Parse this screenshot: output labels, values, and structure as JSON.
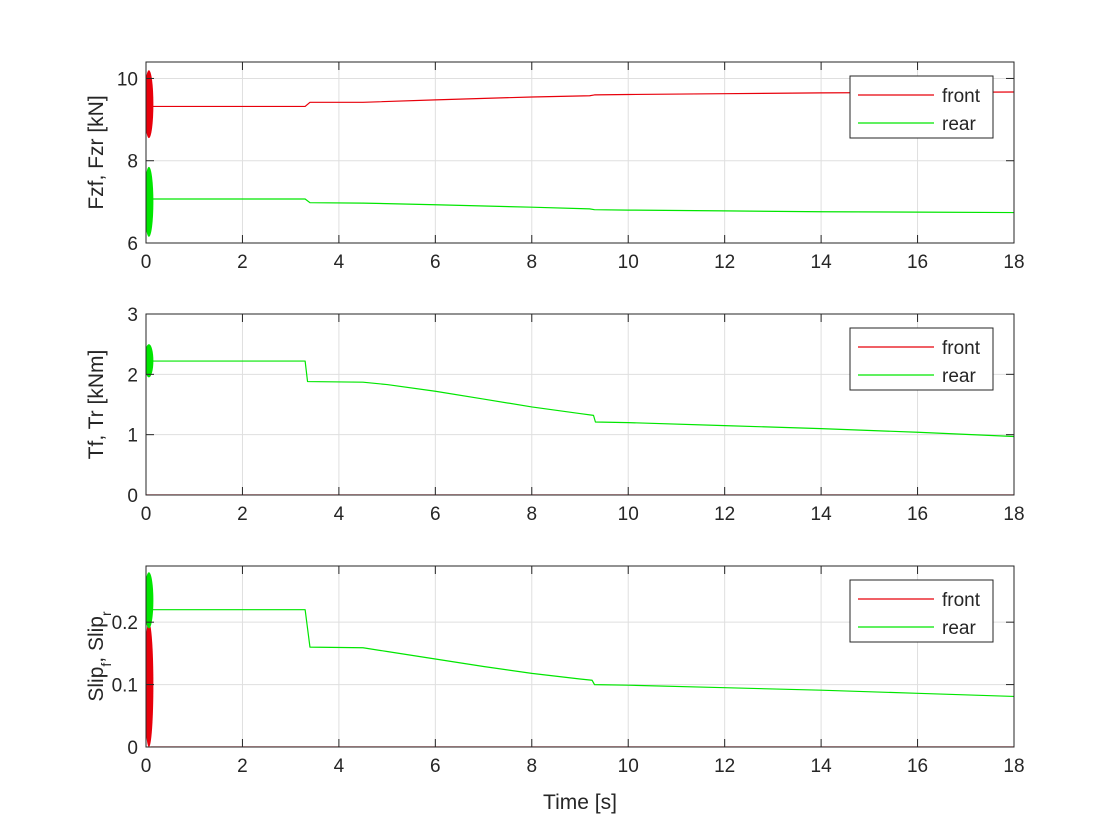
{
  "figure": {
    "xlabel": "Time [s]"
  },
  "chart_data": [
    {
      "type": "line",
      "ylabel": "Fzf, Fzr [kN]",
      "xlim": [
        0,
        18
      ],
      "ylim": [
        6,
        10.4
      ],
      "xticks": [
        0,
        2,
        4,
        6,
        8,
        10,
        12,
        14,
        16,
        18
      ],
      "yticks": [
        6,
        8,
        10
      ],
      "grid": true,
      "legend": "top-right",
      "series": [
        {
          "name": "front",
          "color": "#e8000b",
          "x": [
            0.03,
            3.3,
            3.4,
            4.5,
            6,
            8,
            9.2,
            9.3,
            10,
            12,
            14,
            16,
            18
          ],
          "y": [
            9.32,
            9.32,
            9.42,
            9.42,
            9.48,
            9.55,
            9.58,
            9.6,
            9.61,
            9.63,
            9.65,
            9.66,
            9.67
          ],
          "transient": {
            "x": 0.06,
            "ymin": 8.55,
            "ymax": 10.2
          }
        },
        {
          "name": "rear",
          "color": "#00e600",
          "x": [
            0.03,
            3.3,
            3.4,
            4.5,
            6,
            8,
            9.2,
            9.3,
            10,
            12,
            14,
            16,
            18
          ],
          "y": [
            7.07,
            7.07,
            6.98,
            6.97,
            6.93,
            6.87,
            6.83,
            6.81,
            6.8,
            6.78,
            6.76,
            6.75,
            6.74
          ],
          "transient": {
            "x": 0.06,
            "ymin": 6.15,
            "ymax": 7.85
          }
        }
      ]
    },
    {
      "type": "line",
      "ylabel": "Tf, Tr [kNm]",
      "xlim": [
        0,
        18
      ],
      "ylim": [
        0,
        3
      ],
      "xticks": [
        0,
        2,
        4,
        6,
        8,
        10,
        12,
        14,
        16,
        18
      ],
      "yticks": [
        0,
        1,
        2,
        3
      ],
      "grid": true,
      "legend": "top-right",
      "series": [
        {
          "name": "front",
          "color": "#e8000b",
          "x": [
            0,
            18
          ],
          "y": [
            0,
            0
          ]
        },
        {
          "name": "rear",
          "color": "#00e600",
          "x": [
            0.03,
            3.3,
            3.35,
            4.5,
            5,
            6,
            7,
            8,
            9,
            9.28,
            9.32,
            10,
            12,
            14,
            16,
            18
          ],
          "y": [
            2.22,
            2.22,
            1.88,
            1.87,
            1.83,
            1.72,
            1.59,
            1.46,
            1.35,
            1.32,
            1.21,
            1.2,
            1.15,
            1.1,
            1.04,
            0.97
          ],
          "transient": {
            "x": 0.06,
            "ymin": 1.95,
            "ymax": 2.5
          }
        }
      ]
    },
    {
      "type": "line",
      "ylabel": "Slip",
      "ylabel_sub_f": "f",
      "ylabel_sep": ", Slip",
      "ylabel_sub_r": "r",
      "xlim": [
        0,
        18
      ],
      "ylim": [
        0,
        0.29
      ],
      "xticks": [
        0,
        2,
        4,
        6,
        8,
        10,
        12,
        14,
        16,
        18
      ],
      "yticks": [
        0,
        0.1,
        0.2
      ],
      "ytick_labels": [
        "0",
        "0.1",
        "0.2"
      ],
      "grid": true,
      "legend": "top-right",
      "series": [
        {
          "name": "front",
          "color": "#e8000b",
          "x": [
            0.1,
            18
          ],
          "y": [
            0,
            0
          ],
          "transient": {
            "x": 0.06,
            "ymin": 0,
            "ymax": 0.2
          }
        },
        {
          "name": "rear",
          "color": "#00e600",
          "x": [
            0.03,
            3.3,
            3.4,
            4.5,
            5,
            6,
            7,
            8,
            9,
            9.25,
            9.3,
            10,
            12,
            14,
            16,
            18
          ],
          "y": [
            0.22,
            0.22,
            0.16,
            0.159,
            0.153,
            0.141,
            0.129,
            0.118,
            0.109,
            0.107,
            0.1,
            0.099,
            0.095,
            0.091,
            0.086,
            0.081
          ],
          "transient": {
            "x": 0.06,
            "ymin": 0.19,
            "ymax": 0.28
          }
        }
      ]
    }
  ]
}
